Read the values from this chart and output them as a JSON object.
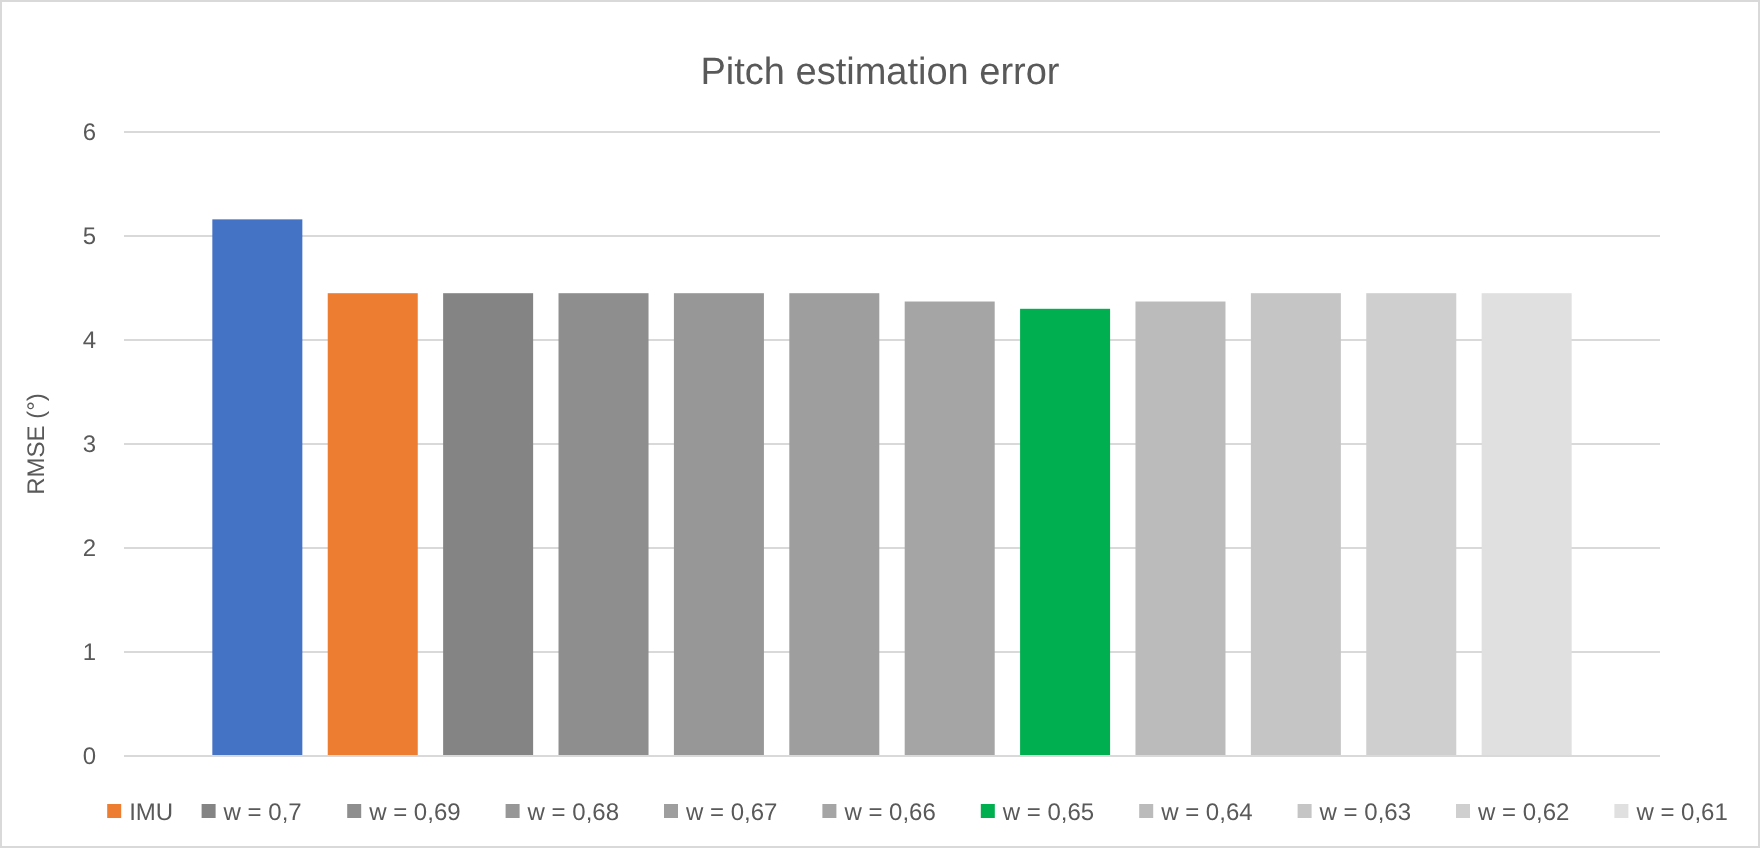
{
  "chart_data": {
    "type": "bar",
    "title": "Pitch estimation error",
    "ylabel": "RMSE (°)",
    "categories": [
      null
    ],
    "series": [
      {
        "color": "#4472c4",
        "values": [
          5.16
        ]
      },
      {
        "name": "IMU",
        "color": "#ed7d31",
        "values": [
          4.45
        ]
      },
      {
        "name": "w = 0,7",
        "color": "#848484",
        "values": [
          4.45
        ]
      },
      {
        "name": "w = 0,69",
        "color": "#8e8e8e",
        "values": [
          4.45
        ]
      },
      {
        "name": "w = 0,68",
        "color": "#979797",
        "values": [
          4.45
        ]
      },
      {
        "name": "w = 0,67",
        "color": "#9e9e9e",
        "values": [
          4.45
        ]
      },
      {
        "name": "w = 0,66",
        "color": "#a5a5a5",
        "values": [
          4.37
        ]
      },
      {
        "name": "w = 0,65",
        "color": "#00b050",
        "values": [
          4.3
        ]
      },
      {
        "name": "w = 0,64",
        "color": "#bbbbbb",
        "values": [
          4.37
        ]
      },
      {
        "name": "w = 0,63",
        "color": "#c5c5c5",
        "values": [
          4.45
        ]
      },
      {
        "name": "w = 0,62",
        "color": "#cfcfcf",
        "values": [
          4.45
        ]
      },
      {
        "name": "w = 0,61",
        "color": "#e0e0e0",
        "values": [
          4.45
        ]
      }
    ],
    "ylim": [
      0,
      6
    ],
    "yticks": [
      0,
      1,
      2,
      3,
      4,
      5,
      6
    ],
    "grid": "y",
    "legend": "bottom"
  }
}
